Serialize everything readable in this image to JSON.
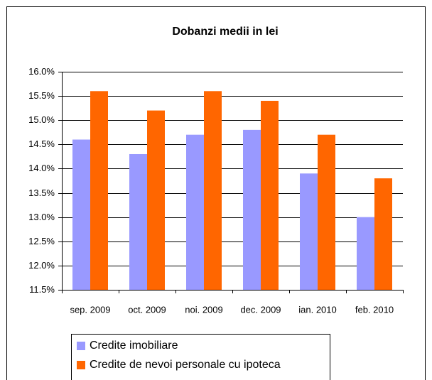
{
  "chart_data": {
    "type": "bar",
    "title": "Dobanzi medii in lei",
    "categories": [
      "sep. 2009",
      "oct. 2009",
      "noi. 2009",
      "dec. 2009",
      "ian. 2010",
      "feb. 2010"
    ],
    "series": [
      {
        "name": "Credite imobiliare",
        "color": "#9999ff",
        "values": [
          14.6,
          14.3,
          14.7,
          14.8,
          13.9,
          13.0
        ]
      },
      {
        "name": "Credite de nevoi personale cu ipoteca",
        "color": "#ff6600",
        "values": [
          15.6,
          15.2,
          15.6,
          15.4,
          14.7,
          13.8
        ]
      }
    ],
    "ylim": [
      11.5,
      16.0
    ],
    "yticks": [
      {
        "value": 11.5,
        "label": "11.5%"
      },
      {
        "value": 12.0,
        "label": "12.0%"
      },
      {
        "value": 12.5,
        "label": "12.5%"
      },
      {
        "value": 13.0,
        "label": "13.0%"
      },
      {
        "value": 13.5,
        "label": "13.5%"
      },
      {
        "value": 14.0,
        "label": "14.0%"
      },
      {
        "value": 14.5,
        "label": "14.5%"
      },
      {
        "value": 15.0,
        "label": "15.0%"
      },
      {
        "value": 15.5,
        "label": "15.5%"
      },
      {
        "value": 16.0,
        "label": "16.0%"
      }
    ],
    "grid": true
  }
}
